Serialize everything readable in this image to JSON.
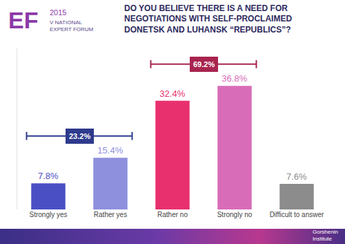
{
  "chart_data": {
    "type": "bar",
    "title": "DO YOU BELIEVE THERE IS A NEED FOR NEGOTIATIONS WITH SELF-PROCLAIMED DONETSK AND LUHANSK “REPUBLICS”?",
    "categories": [
      "Strongly yes",
      "Rather yes",
      "Rather no",
      "Strongly no",
      "Difficult to answer"
    ],
    "values": [
      7.8,
      15.4,
      32.4,
      36.8,
      7.6
    ],
    "value_labels": [
      "7.8%",
      "15.4%",
      "32.4%",
      "36.8%",
      "7.6%"
    ],
    "colors": [
      "#4b4fc4",
      "#8e90dd",
      "#e8306e",
      "#d96cb8",
      "#8c8c8c"
    ],
    "data_labels": true,
    "tick_labels": "x",
    "grid": false,
    "ylim": [
      0,
      48
    ],
    "groups": [
      {
        "start": "Strongly yes",
        "end": "Rather yes",
        "value": 23.2,
        "label": "23.2%",
        "color": "#2e3a8c"
      },
      {
        "start": "Rather no",
        "end": "Strongly no",
        "value": 69.2,
        "label": "69.2%",
        "color": "#a8244f"
      }
    ],
    "annotations": [
      "EF",
      "2015",
      "V NATIONAL",
      "EXPERT FORUM",
      "Gorshenin",
      "Institute"
    ]
  }
}
